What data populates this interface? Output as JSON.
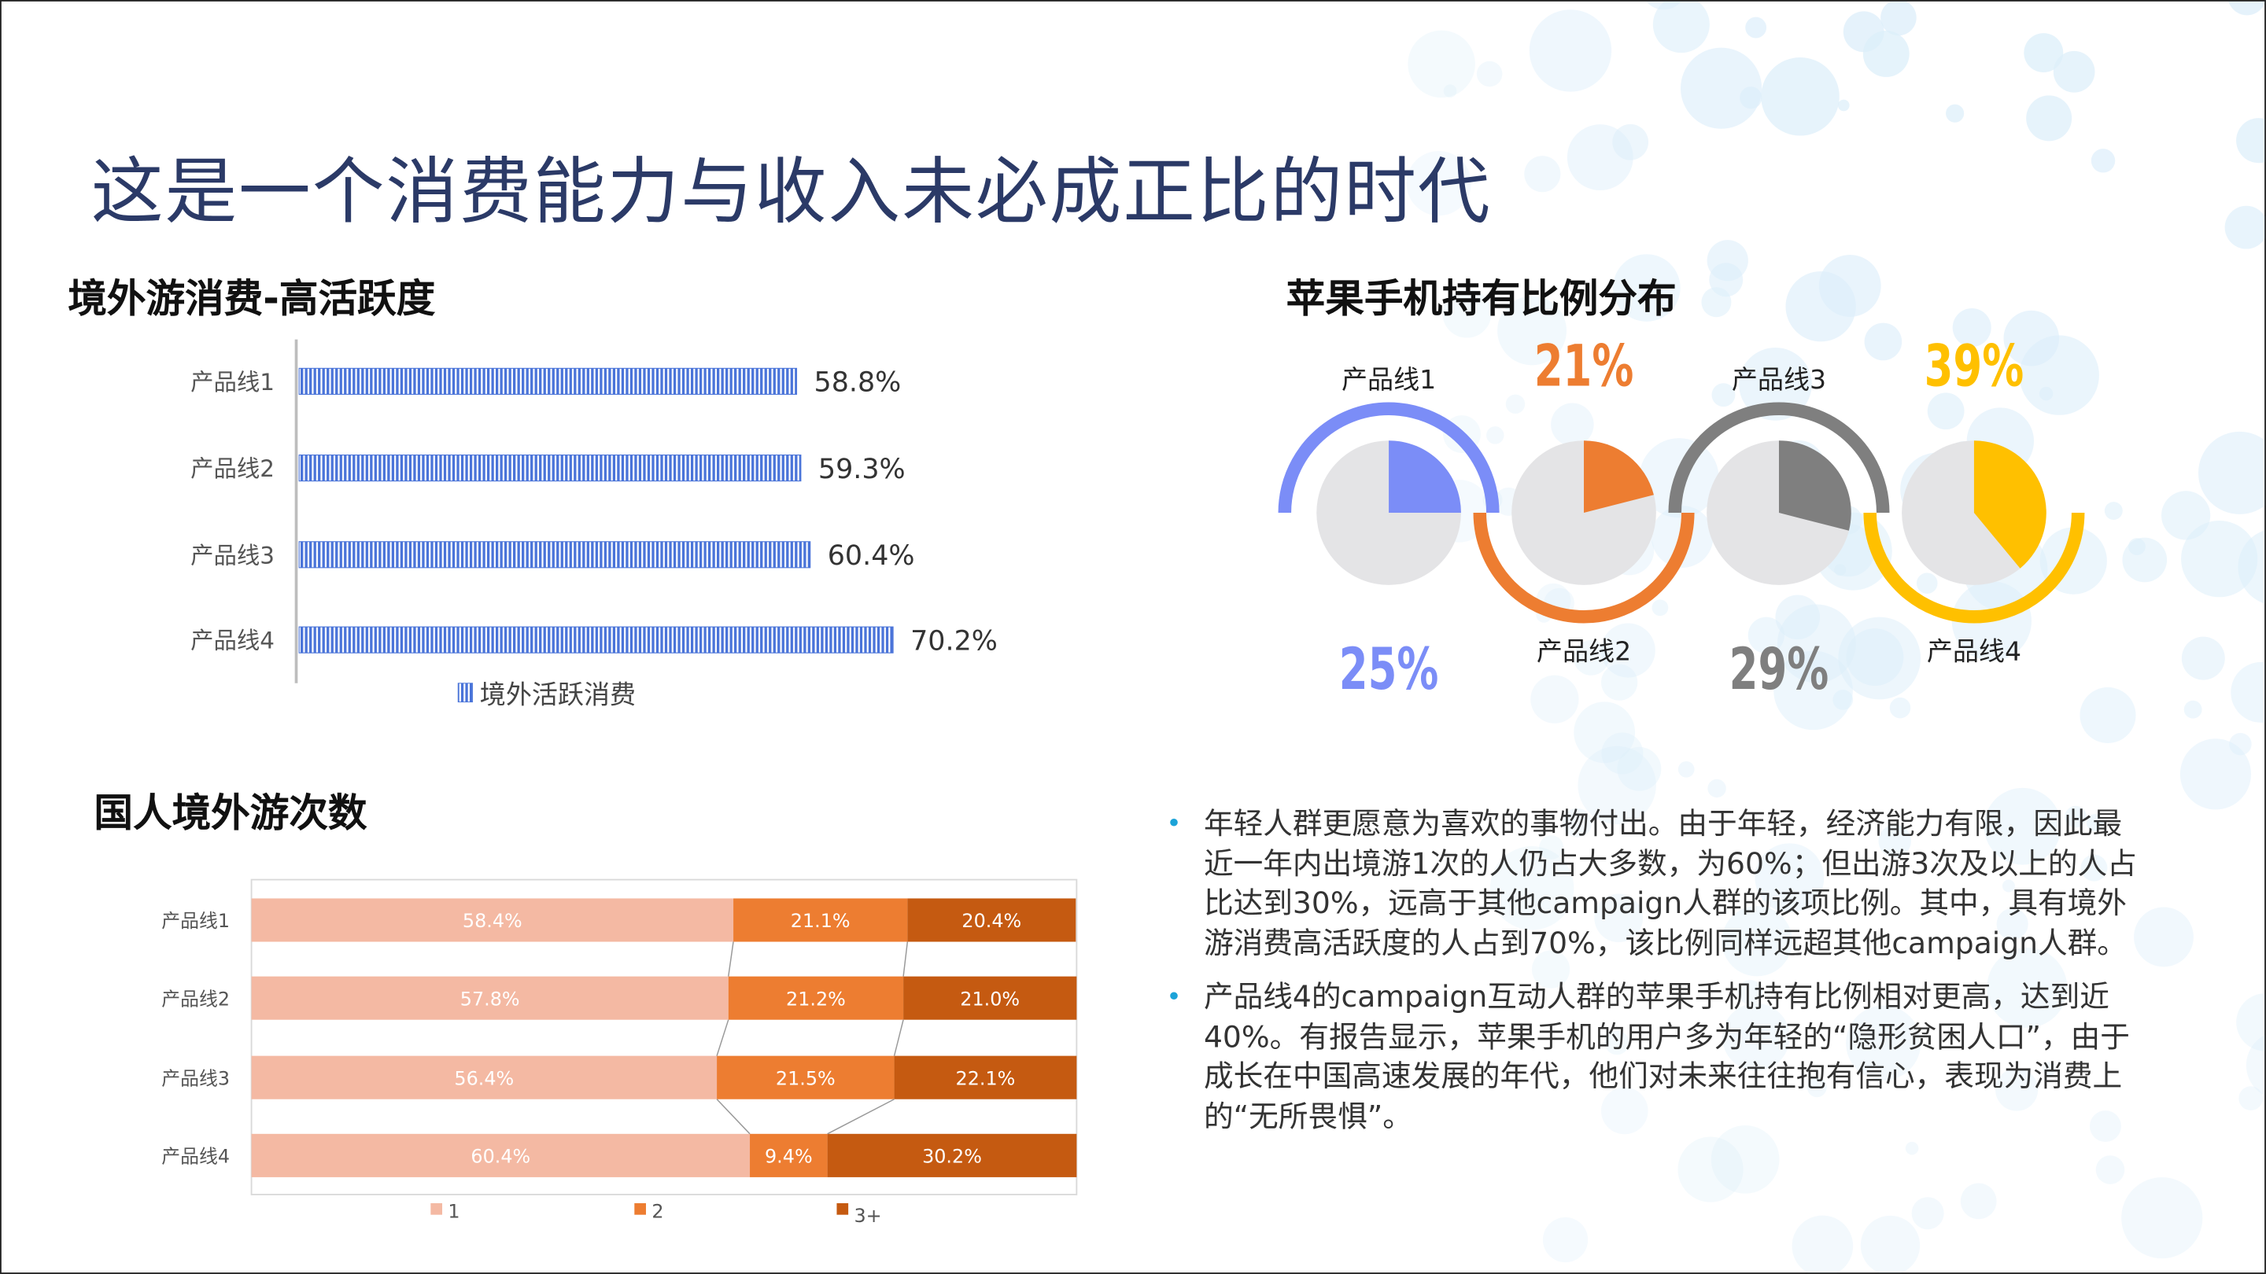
{
  "title": "这是一个消费能力与收入未必成正比的时代",
  "section1": {
    "heading": "境外游消费-高活跃度",
    "chart_data": {
      "type": "bar",
      "orientation": "horizontal",
      "categories": [
        "产品线1",
        "产品线2",
        "产品线3",
        "产品线4"
      ],
      "series": [
        {
          "name": "境外活跃消费",
          "values": [
            58.8,
            59.3,
            60.4,
            70.2
          ],
          "labels": [
            "58.8%",
            "59.3%",
            "60.4%",
            "70.2%"
          ],
          "color": "#4a74d9"
        }
      ],
      "legend_position": "bottom"
    }
  },
  "section2": {
    "heading": "苹果手机持有比例分布",
    "chart_data": {
      "type": "pie",
      "items": [
        {
          "category": "产品线1",
          "value": 25,
          "label": "25%",
          "color": "#7b8df7"
        },
        {
          "category": "产品线2",
          "value": 21,
          "label": "21%",
          "color": "#ed7d31"
        },
        {
          "category": "产品线3",
          "value": 29,
          "label": "29%",
          "color": "#7f7f7f"
        },
        {
          "category": "产品线4",
          "value": 39,
          "label": "39%",
          "color": "#ffc000"
        }
      ],
      "remainder_color": "#e4e4e6"
    }
  },
  "section3": {
    "heading": "国人境外游次数",
    "chart_data": {
      "type": "bar",
      "stacked": "percent",
      "orientation": "horizontal",
      "categories": [
        "产品线1",
        "产品线2",
        "产品线3",
        "产品线4"
      ],
      "series": [
        {
          "name": "1",
          "values": [
            58.4,
            57.8,
            56.4,
            60.4
          ],
          "labels": [
            "58.4%",
            "57.8%",
            "56.4%",
            "60.4%"
          ],
          "color": "#f4b9a3"
        },
        {
          "name": "2",
          "values": [
            21.1,
            21.2,
            21.5,
            9.4
          ],
          "labels": [
            "21.1%",
            "21.2%",
            "21.5%",
            "9.4%"
          ],
          "color": "#ed7d31"
        },
        {
          "name": "3+",
          "values": [
            20.4,
            21.0,
            22.1,
            30.2
          ],
          "labels": [
            "20.4%",
            "21.0%",
            "22.1%",
            "30.2%"
          ],
          "color": "#c55a11"
        }
      ],
      "series_lines": true,
      "legend_position": "bottom"
    }
  },
  "bullets": [
    "年轻人群更愿意为喜欢的事物付出。由于年轻，经济能力有限，因此最近一年内出境游1次的人仍占大多数，为60%；但出游3次及以上的人占比达到30%，远高于其他campaign人群的该项比例。其中，具有境外游消费高活跃度的人占到70%，该比例同样远超其他campaign人群。",
    "产品线4的campaign互动人群的苹果手机持有比例相对更高，达到近40%。有报告显示，苹果手机的用户多为年轻的“隐形贫困人口”，由于成长在中国高速发展的年代，他们对未来往往抱有信心，表现为消费上的“无所畏惧”。"
  ],
  "colors": {
    "title": "#2b3a67",
    "bullet": "#1ca3d8",
    "decor": "#dceefa"
  }
}
